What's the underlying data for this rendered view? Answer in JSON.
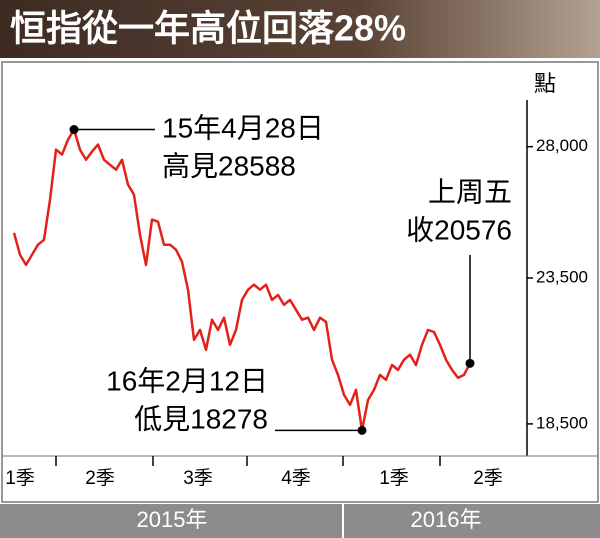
{
  "chart_data": {
    "type": "line",
    "title": "恒指從一年高位回落28%",
    "unit": "點",
    "series": [
      {
        "name": "恒指",
        "color": "#e32119",
        "values": [
          25050,
          24300,
          23950,
          24300,
          24640,
          24810,
          26180,
          27900,
          27730,
          28240,
          28588,
          27900,
          27550,
          27830,
          28070,
          27550,
          27380,
          27210,
          27550,
          26700,
          26350,
          24980,
          23950,
          25500,
          25430,
          24640,
          24640,
          24470,
          24060,
          23100,
          21380,
          21720,
          21040,
          22070,
          21720,
          22140,
          21210,
          21720,
          22750,
          23100,
          23270,
          23100,
          23270,
          22750,
          22920,
          22580,
          22750,
          22410,
          22070,
          22140,
          21720,
          22140,
          22000,
          20700,
          20180,
          19500,
          19150,
          19670,
          18278,
          19320,
          19670,
          20180,
          20010,
          20520,
          20350,
          20700,
          20870,
          20520,
          21210,
          21720,
          21650,
          21210,
          20700,
          20350,
          20080,
          20180,
          20576
        ]
      }
    ],
    "ylim": [
      17400,
      29600
    ],
    "yticks": [
      {
        "value": 18500,
        "label": "18,500"
      },
      {
        "value": 23500,
        "label": "23,500"
      },
      {
        "value": 28000,
        "label": "28,000"
      }
    ],
    "quarters": [
      "1季",
      "2季",
      "3季",
      "4季",
      "1季",
      "2季"
    ],
    "years": [
      "2015年",
      "2016年"
    ],
    "annotations": [
      {
        "lines": [
          "15年4月28日",
          "高見28588"
        ]
      },
      {
        "lines": [
          "16年2月12日",
          "低見18278"
        ]
      },
      {
        "lines": [
          "上周五",
          "收20576"
        ]
      }
    ]
  }
}
